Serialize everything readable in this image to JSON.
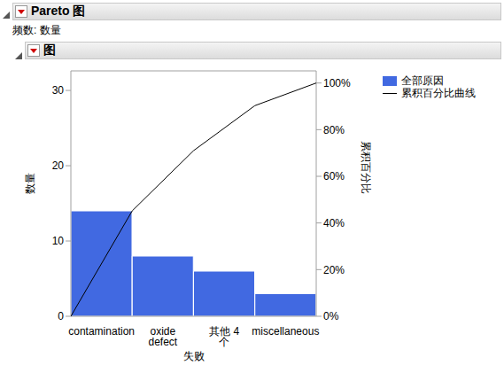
{
  "chart_data": {
    "type": "bar",
    "title": "Pareto 图",
    "subtitle": "频数: 数量",
    "section_title": "图",
    "categories": [
      "contamination",
      "oxide defect",
      "其他 4 个",
      "miscellaneous"
    ],
    "x_label": "失败",
    "y_label": "数量",
    "y2_label": "累积百分比",
    "ylim": [
      0,
      32.6
    ],
    "yticks": [
      0,
      10,
      20,
      30
    ],
    "y2lim": [
      0,
      105.2
    ],
    "y2ticks": [
      {
        "value": 0,
        "label": "0%"
      },
      {
        "value": 20,
        "label": "20%"
      },
      {
        "value": 40,
        "label": "40%"
      },
      {
        "value": 60,
        "label": "60%"
      },
      {
        "value": 80,
        "label": "80%"
      },
      {
        "value": 100,
        "label": "100%"
      }
    ],
    "legend": "right",
    "series": [
      {
        "name": "全部原因",
        "type": "bar",
        "color": "#4169e1",
        "values": [
          14,
          8,
          6,
          3
        ]
      },
      {
        "name": "累积百分比曲线",
        "type": "line",
        "color": "#000000",
        "axis": "y2",
        "x": [
          0,
          1,
          2,
          3,
          4
        ],
        "values": [
          0,
          45.2,
          71,
          90.3,
          100
        ]
      }
    ]
  }
}
